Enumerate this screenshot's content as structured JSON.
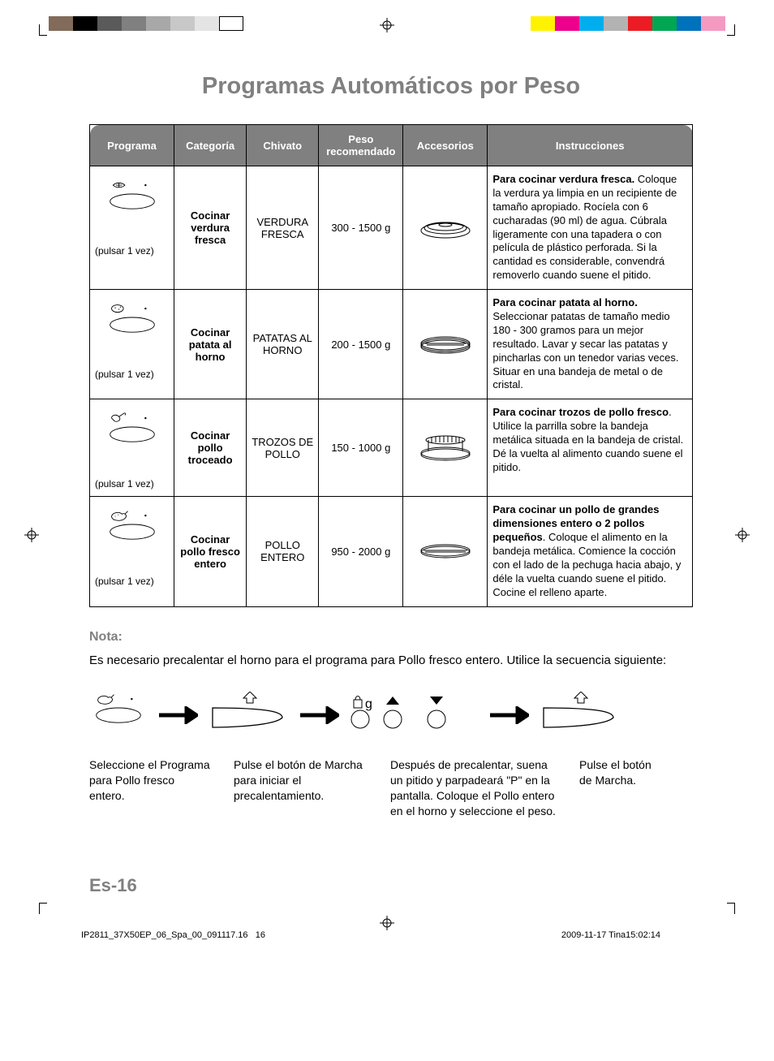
{
  "page": {
    "title": "Programas Automáticos por Peso",
    "page_number": "Es-16",
    "footer_left": "IP2811_37X50EP_06_Spa_00_091117.16",
    "footer_center_num": "16",
    "footer_right": "2009-11-17   Tina15:02:14"
  },
  "colorbar": {
    "left": [
      "#826b5a",
      "#000000",
      "#5a5a5a",
      "#808080",
      "#a8a8a8",
      "#c8c8c8",
      "#e4e4e4",
      "#ffffff"
    ],
    "right": [
      "#fff200",
      "#ec008c",
      "#00aeef",
      "#b3b3b3",
      "#ed1c24",
      "#00a651",
      "#0072bc",
      "#f49ac1"
    ]
  },
  "table": {
    "headers": {
      "programa": "Programa",
      "categoria": "Categoría",
      "chivato": "Chivato",
      "peso": "Peso recomendado",
      "accesorios": "Accesorios",
      "instrucciones": "Instrucciones"
    },
    "rows": [
      {
        "pulsar": "(pulsar 1 vez)",
        "categoria": "Cocinar verdura fresca",
        "chivato": "VERDURA FRESCA",
        "peso": "300 - 1500 g",
        "instr_bold": "Para cocinar verdura fresca.",
        "instr_text": " Coloque la verdura ya limpia en un recipiente de tamaño apropiado. Rocíela con 6 cucharadas (90 ml) de agua. Cúbrala ligeramente con una tapadera o con película de plástico perforada. Si la cantidad es considerable, convendrá removerlo cuando suene el pitido."
      },
      {
        "pulsar": "(pulsar 1 vez)",
        "categoria": "Cocinar patata al horno",
        "chivato": "PATATAS AL HORNO",
        "peso": "200 - 1500 g",
        "instr_bold": "Para cocinar patata al horno.",
        "instr_text": " Seleccionar patatas de tamaño medio 180 - 300 gramos para un mejor resultado. Lavar y secar las patatas y pincharlas con un tenedor varias veces. Situar en una bandeja de metal o de cristal."
      },
      {
        "pulsar": "(pulsar 1 vez)",
        "categoria": "Cocinar pollo troceado",
        "chivato": "TROZOS DE POLLO",
        "peso": "150 - 1000 g",
        "instr_bold": "Para cocinar trozos de pollo fresco",
        "instr_text": ". Utilice la parrilla sobre la bandeja metálica situada en la bandeja de cristal. Dé la vuelta al alimento cuando suene el pitido."
      },
      {
        "pulsar": "(pulsar 1 vez)",
        "categoria": "Cocinar pollo fresco entero",
        "chivato": "POLLO ENTERO",
        "peso": "950 - 2000 g",
        "instr_bold": "Para cocinar un pollo de grandes dimensiones entero o 2 pollos pequeños",
        "instr_text": ". Coloque el alimento en la bandeja metálica. Comience la cocción con el lado de la pechuga hacia abajo, y déle la vuelta cuando suene el pitido. Cocine el relleno aparte."
      }
    ]
  },
  "nota": {
    "heading": "Nota:",
    "text": "Es necesario precalentar el horno para el programa para Pollo fresco entero. Utilice la secuencia siguiente:"
  },
  "sequence_captions": {
    "c1": "Seleccione el Programa para Pollo fresco entero.",
    "c2": "Pulse el botón de Marcha para iniciar el precalentamiento.",
    "c3": "Después de precalentar, suena un pitido y parpadeará \"P\" en la pantalla. Coloque el Pollo entero en el horno y seleccione el peso.",
    "c4": "Pulse el botón de Marcha.",
    "g_label": "g"
  }
}
